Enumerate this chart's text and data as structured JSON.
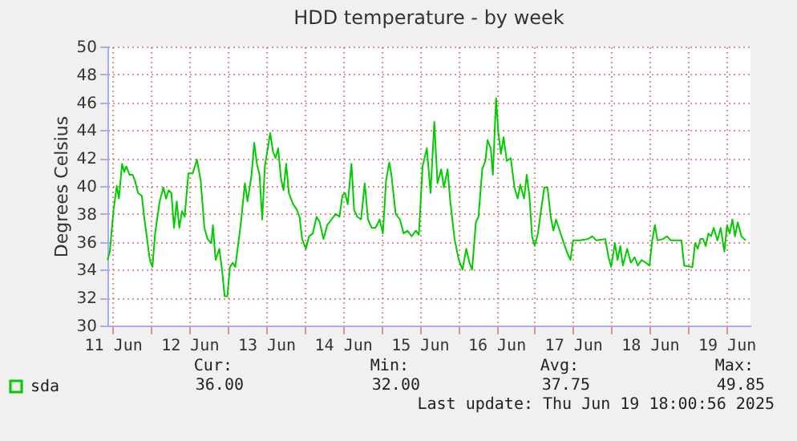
{
  "chart_data": {
    "type": "line",
    "title": "HDD temperature - by week",
    "ylabel": "Degrees Celsius",
    "x": [
      "2025-06-11T10:20",
      "2025-06-11T11:05",
      "2025-06-11T12:15",
      "2025-06-11T13:15",
      "2025-06-11T13:55",
      "2025-06-11T14:55",
      "2025-06-11T15:35",
      "2025-06-11T16:15",
      "2025-06-11T17:15",
      "2025-06-11T18:15",
      "2025-06-11T18:55",
      "2025-06-11T19:55",
      "2025-06-11T21:05",
      "2025-06-11T21:55",
      "2025-06-11T22:45",
      "2025-06-11T23:35",
      "2025-06-12T00:25",
      "2025-06-12T01:15",
      "2025-06-12T02:40",
      "2025-06-12T03:50",
      "2025-06-12T04:40",
      "2025-06-12T05:30",
      "2025-06-12T06:20",
      "2025-06-12T07:10",
      "2025-06-12T08:00",
      "2025-06-12T08:50",
      "2025-06-12T09:40",
      "2025-06-12T10:30",
      "2025-06-12T11:40",
      "2025-06-12T13:00",
      "2025-06-12T14:20",
      "2025-06-12T15:30",
      "2025-06-12T16:40",
      "2025-06-12T17:40",
      "2025-06-12T18:50",
      "2025-06-12T19:20",
      "2025-06-12T20:10",
      "2025-06-12T21:20",
      "2025-06-12T22:10",
      "2025-06-12T23:00",
      "2025-06-12T23:50",
      "2025-06-13T00:40",
      "2025-06-13T01:30",
      "2025-06-13T02:20",
      "2025-06-13T04:00",
      "2025-06-13T05:20",
      "2025-06-13T06:10",
      "2025-06-13T07:25",
      "2025-06-13T08:15",
      "2025-06-13T09:05",
      "2025-06-13T09:55",
      "2025-06-13T10:45",
      "2025-06-13T11:35",
      "2025-06-13T13:15",
      "2025-06-13T14:05",
      "2025-06-13T14:55",
      "2025-06-13T15:45",
      "2025-06-13T16:35",
      "2025-06-13T17:25",
      "2025-06-13T18:15",
      "2025-06-13T19:05",
      "2025-06-13T20:25",
      "2025-06-13T21:35",
      "2025-06-13T22:25",
      "2025-06-13T23:15",
      "2025-06-14T00:25",
      "2025-06-14T01:25",
      "2025-06-14T02:35",
      "2025-06-14T03:45",
      "2025-06-14T04:45",
      "2025-06-14T05:55",
      "2025-06-14T07:05",
      "2025-06-14T08:25",
      "2025-06-14T09:45",
      "2025-06-14T10:55",
      "2025-06-14T11:50",
      "2025-06-14T12:40",
      "2025-06-14T13:30",
      "2025-06-14T14:40",
      "2025-06-14T15:30",
      "2025-06-14T16:30",
      "2025-06-14T17:40",
      "2025-06-14T18:50",
      "2025-06-14T19:50",
      "2025-06-14T21:00",
      "2025-06-14T22:10",
      "2025-06-14T23:30",
      "2025-06-15T00:30",
      "2025-06-15T01:30",
      "2025-06-15T02:30",
      "2025-06-15T03:10",
      "2025-06-15T04:30",
      "2025-06-15T05:50",
      "2025-06-15T07:00",
      "2025-06-15T08:10",
      "2025-06-15T09:30",
      "2025-06-15T10:50",
      "2025-06-15T11:45",
      "2025-06-15T12:55",
      "2025-06-15T14:15",
      "2025-06-15T15:25",
      "2025-06-15T16:35",
      "2025-06-15T17:35",
      "2025-06-15T18:45",
      "2025-06-15T19:35",
      "2025-06-15T20:45",
      "2025-06-15T21:35",
      "2025-06-15T22:55",
      "2025-06-16T00:15",
      "2025-06-16T01:25",
      "2025-06-16T02:35",
      "2025-06-16T03:35",
      "2025-06-16T04:25",
      "2025-06-16T05:35",
      "2025-06-16T06:25",
      "2025-06-16T07:35",
      "2025-06-16T08:35",
      "2025-06-16T09:15",
      "2025-06-16T10:15",
      "2025-06-16T10:55",
      "2025-06-16T11:55",
      "2025-06-16T12:35",
      "2025-06-16T13:25",
      "2025-06-16T14:15",
      "2025-06-16T15:15",
      "2025-06-16T16:30",
      "2025-06-16T17:40",
      "2025-06-16T18:40",
      "2025-06-16T19:30",
      "2025-06-16T20:40",
      "2025-06-16T21:30",
      "2025-06-16T22:20",
      "2025-06-16T23:10",
      "2025-06-17T00:00",
      "2025-06-17T01:00",
      "2025-06-17T02:00",
      "2025-06-17T03:00",
      "2025-06-17T04:00",
      "2025-06-17T05:00",
      "2025-06-17T05:50",
      "2025-06-17T06:40",
      "2025-06-17T07:40",
      "2025-06-17T08:40",
      "2025-06-17T10:00",
      "2025-06-17T11:10",
      "2025-06-17T12:00",
      "2025-06-17T14:10",
      "2025-06-17T16:40",
      "2025-06-17T18:00",
      "2025-06-17T19:15",
      "2025-06-17T22:05",
      "2025-06-17T23:05",
      "2025-06-17T23:55",
      "2025-06-18T01:05",
      "2025-06-18T01:55",
      "2025-06-18T02:45",
      "2025-06-18T03:35",
      "2025-06-18T04:55",
      "2025-06-18T06:05",
      "2025-06-18T07:15",
      "2025-06-18T08:15",
      "2025-06-18T09:25",
      "2025-06-18T10:45",
      "2025-06-18T11:55",
      "2025-06-18T12:45",
      "2025-06-18T13:35",
      "2025-06-18T14:25",
      "2025-06-18T16:05",
      "2025-06-18T17:25",
      "2025-06-18T18:35",
      "2025-06-18T21:55",
      "2025-06-18T22:45",
      "2025-06-19T01:20",
      "2025-06-19T02:10",
      "2025-06-19T03:00",
      "2025-06-19T03:50",
      "2025-06-19T04:40",
      "2025-06-19T05:30",
      "2025-06-19T06:20",
      "2025-06-19T07:10",
      "2025-06-19T08:00",
      "2025-06-19T09:10",
      "2025-06-19T10:10",
      "2025-06-19T11:20",
      "2025-06-19T12:10",
      "2025-06-19T13:00",
      "2025-06-19T13:50",
      "2025-06-19T14:40",
      "2025-06-19T15:30",
      "2025-06-19T16:40",
      "2025-06-19T18:00"
    ],
    "series": [
      {
        "name": "sda",
        "color": "#00cc00",
        "values": [
          34.7,
          35.3,
          38.3,
          40,
          39.1,
          41.6,
          41,
          41.4,
          40.8,
          40.8,
          40.4,
          39.5,
          39.3,
          37.6,
          36.2,
          34.7,
          34.2,
          36.6,
          38.9,
          39.9,
          39.1,
          39.7,
          39.5,
          37,
          38.9,
          37,
          38.2,
          37.8,
          40.9,
          40.9,
          41.9,
          40.4,
          37,
          36.2,
          35.9,
          37.2,
          34.7,
          35.5,
          34,
          32.1,
          32.1,
          34.2,
          34.5,
          34.2,
          37.2,
          40.2,
          38.9,
          40.8,
          43.1,
          41.6,
          40.8,
          37.6,
          41.4,
          43.8,
          42.5,
          42,
          42.7,
          40.6,
          39.7,
          41.6,
          39.5,
          38.7,
          38.3,
          37.8,
          36.2,
          35.5,
          36.4,
          36.6,
          37.8,
          37.4,
          36.2,
          37.2,
          37.6,
          38,
          37.8,
          39.3,
          39.5,
          38.7,
          41.6,
          38.3,
          37.8,
          37.6,
          40.2,
          37.6,
          37,
          37,
          37.6,
          36.6,
          40.4,
          41.7,
          40.8,
          38,
          37.6,
          36.6,
          36.8,
          36.4,
          36.8,
          36.5,
          41.4,
          42.7,
          39.5,
          44.6,
          40.2,
          41.2,
          39.9,
          41.2,
          38.9,
          36.2,
          34.7,
          34,
          35.5,
          34.5,
          34,
          37.4,
          37.8,
          41.2,
          41.8,
          43.3,
          42.7,
          40.8,
          46.3,
          43.9,
          42.3,
          43.5,
          41.8,
          42,
          39.9,
          39.1,
          40.1,
          39.1,
          40.8,
          39.3,
          36.4,
          35.7,
          36.6,
          38.3,
          39.9,
          39.9,
          37.8,
          36.8,
          37.6,
          36.9,
          36.2,
          35.3,
          34.7,
          36.1,
          36.1,
          36.2,
          36.4,
          36.1,
          36.2,
          34.9,
          34.2,
          35.9,
          34.7,
          35.7,
          34.3,
          35.5,
          34.5,
          34.9,
          34.3,
          34.7,
          34.5,
          34.3,
          36.1,
          37.2,
          36.1,
          36.2,
          36.4,
          36.1,
          36.1,
          34.3,
          34.2,
          35.9,
          35.5,
          36.2,
          36.2,
          35.7,
          36.6,
          36.4,
          37,
          36.1,
          37,
          35.3,
          37.2,
          36.6,
          37.6,
          36.4,
          37.4,
          36.4,
          36.1
        ]
      }
    ],
    "xlim": [
      "2025-06-11T10:20",
      "2025-06-19T19:30"
    ],
    "xticks": [
      {
        "value": "2025-06-11T12:00",
        "label": "11 Jun"
      },
      {
        "value": "2025-06-12T00:00",
        "label": null
      },
      {
        "value": "2025-06-12T12:00",
        "label": "12 Jun"
      },
      {
        "value": "2025-06-13T00:00",
        "label": null
      },
      {
        "value": "2025-06-13T12:00",
        "label": "13 Jun"
      },
      {
        "value": "2025-06-14T00:00",
        "label": null
      },
      {
        "value": "2025-06-14T12:00",
        "label": "14 Jun"
      },
      {
        "value": "2025-06-15T00:00",
        "label": null
      },
      {
        "value": "2025-06-15T12:00",
        "label": "15 Jun"
      },
      {
        "value": "2025-06-16T00:00",
        "label": null
      },
      {
        "value": "2025-06-16T12:00",
        "label": "16 Jun"
      },
      {
        "value": "2025-06-17T00:00",
        "label": null
      },
      {
        "value": "2025-06-17T12:00",
        "label": "17 Jun"
      },
      {
        "value": "2025-06-18T00:00",
        "label": null
      },
      {
        "value": "2025-06-18T12:00",
        "label": "18 Jun"
      },
      {
        "value": "2025-06-19T00:00",
        "label": null
      },
      {
        "value": "2025-06-19T12:00",
        "label": "19 Jun"
      }
    ],
    "ylim": [
      30,
      50
    ],
    "yticks": [
      30,
      32,
      34,
      36,
      38,
      40,
      42,
      44,
      46,
      48,
      50
    ],
    "grid": true,
    "legend": "bottom left",
    "annotations": [
      "Cur:",
      "Min:",
      "Avg:",
      "Max:",
      "36.00",
      "32.00",
      "37.75",
      "49.85",
      "Last update: Thu Jun 19 18:00:56 2025"
    ]
  }
}
